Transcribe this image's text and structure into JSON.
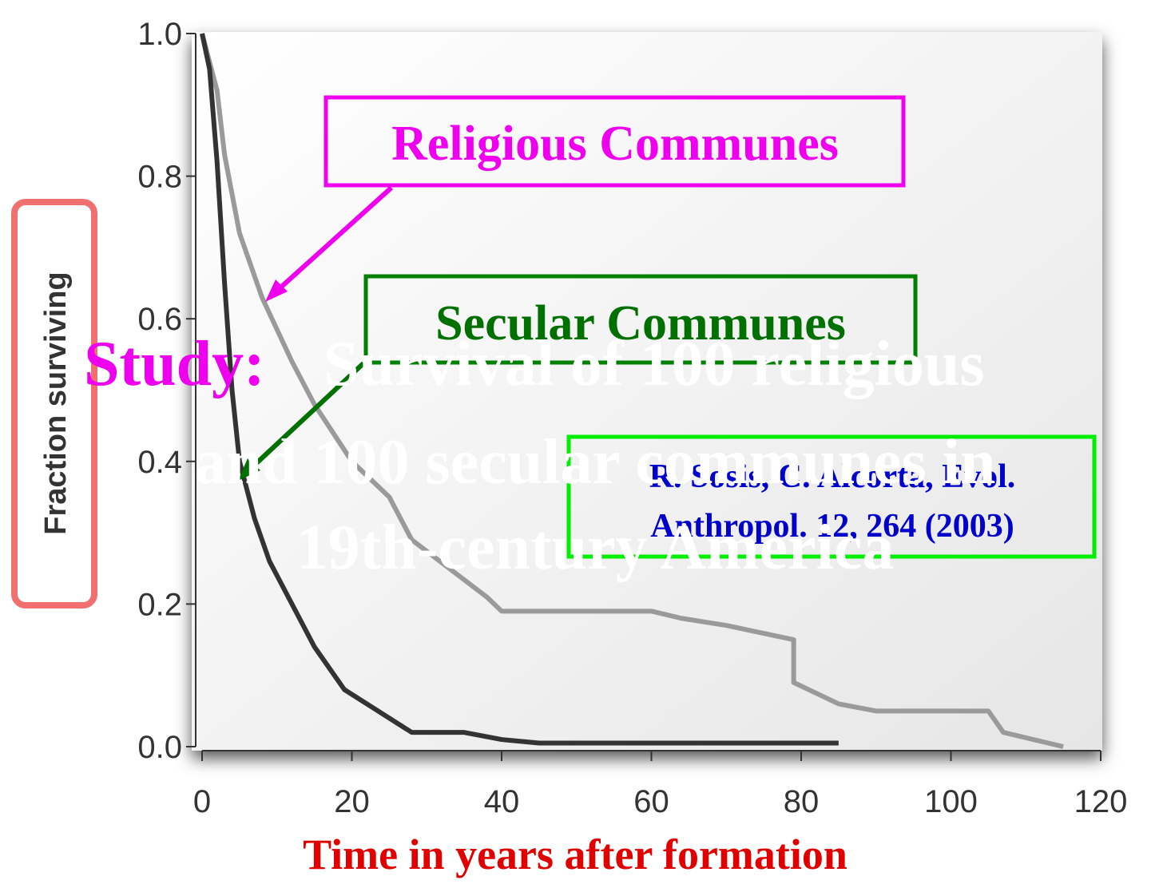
{
  "chart_data": {
    "type": "line",
    "ylabel": "Fraction surviving",
    "xlabel": "Time in years after formation",
    "xlim": [
      0,
      120
    ],
    "xticks": [
      0,
      20,
      40,
      60,
      80,
      100,
      120
    ],
    "ylim": [
      0,
      1
    ],
    "yticks": [
      {
        "value": 0,
        "label": "0.0"
      },
      0.2,
      0.4,
      0.6,
      0.8,
      {
        "value": 1,
        "label": "1.0"
      }
    ],
    "series": [
      {
        "name": "Religious Communes",
        "color": "#9a9a9a",
        "x": [
          0,
          2,
          3,
          5,
          8,
          12,
          15,
          20,
          25,
          28,
          33,
          38,
          40,
          60,
          64,
          70,
          79,
          79,
          85,
          90,
          105,
          107,
          115
        ],
        "values": [
          1,
          0.92,
          0.83,
          0.72,
          0.63,
          0.54,
          0.48,
          0.4,
          0.35,
          0.29,
          0.25,
          0.21,
          0.19,
          0.19,
          0.18,
          0.17,
          0.15,
          0.09,
          0.06,
          0.05,
          0.05,
          0.02,
          0
        ]
      },
      {
        "name": "Secular Communes",
        "color": "#333333",
        "x": [
          0,
          1,
          2,
          3,
          4,
          5,
          7,
          9,
          11,
          13,
          15,
          17,
          19,
          22,
          25,
          28,
          35,
          40,
          45,
          85
        ],
        "values": [
          1,
          0.95,
          0.82,
          0.65,
          0.5,
          0.4,
          0.32,
          0.26,
          0.22,
          0.18,
          0.14,
          0.11,
          0.08,
          0.06,
          0.04,
          0.02,
          0.02,
          0.01,
          0.005,
          0.005
        ]
      }
    ],
    "study_label": "Study:",
    "study_text": [
      "Survival of 100 religious",
      "and 100 secular communes in",
      "19th-century America"
    ],
    "citation": [
      "R. Sosis, C. Alcorta, Evol.",
      "Anthropol. 12, 264 (2003)"
    ]
  }
}
